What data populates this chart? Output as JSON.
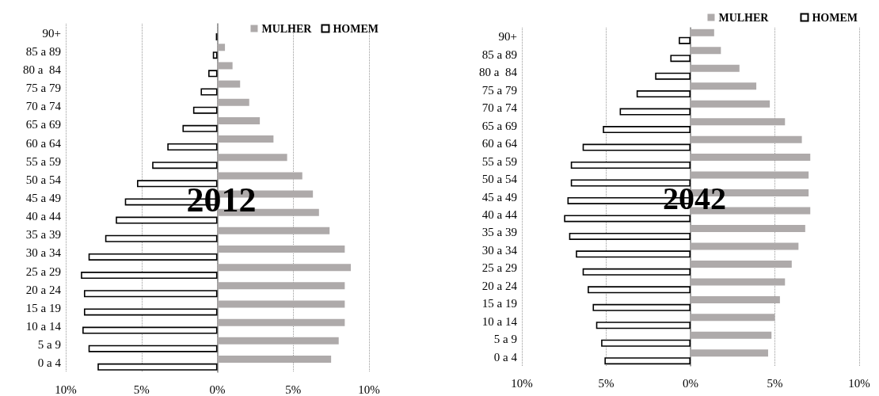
{
  "chart_data": [
    {
      "type": "bar",
      "orientation": "horizontal",
      "title": "2012",
      "categories": [
        "90+",
        "85 a 89",
        "80 a  84",
        "75 a 79",
        "70 a 74",
        "65 a 69",
        "60 a 64",
        "55 a 59",
        "50 a 54",
        "45 a 49",
        "40 a 44",
        "35 a 39",
        "30 a 34",
        "25 a 29",
        "20 a 24",
        "15 a 19",
        "10 a 14",
        "5 a 9",
        "0 a 4"
      ],
      "series": [
        {
          "name": "MULHER",
          "color": "#aeaaaa",
          "values": [
            0,
            0.5,
            1.0,
            1.5,
            2.1,
            2.8,
            3.7,
            4.6,
            5.6,
            6.3,
            6.7,
            7.4,
            8.4,
            8.8,
            8.4,
            8.4,
            8.4,
            8.0,
            7.5
          ]
        },
        {
          "name": "HOMEM",
          "color": "#ffffff",
          "values": [
            -0.1,
            -0.3,
            -0.6,
            -1.1,
            -1.6,
            -2.3,
            -3.3,
            -4.3,
            -5.3,
            -6.1,
            -6.7,
            -7.4,
            -8.5,
            -9.0,
            -8.8,
            -8.8,
            -8.9,
            -8.5,
            -7.9
          ]
        }
      ],
      "xlim": [
        -10,
        10
      ],
      "xticks": [
        {
          "value": -10,
          "label": "10%"
        },
        {
          "value": -5,
          "label": "5%"
        },
        {
          "value": 0,
          "label": "0%"
        },
        {
          "value": 5,
          "label": "5%"
        },
        {
          "value": 10,
          "label": "10%"
        }
      ],
      "grid": "x",
      "legend": "top right"
    },
    {
      "type": "bar",
      "orientation": "horizontal",
      "title": "2042",
      "categories": [
        "90+",
        "85 a 89",
        "80 a  84",
        "75 a 79",
        "70 a 74",
        "65 a 69",
        "60 a 64",
        "55 a 59",
        "50 a 54",
        "45 a 49",
        "40 a 44",
        "35 a 39",
        "30 a 34",
        "25 a 29",
        "20 a 24",
        "15 a 19",
        "10 a 14",
        "5 a 9",
        "0 a 4"
      ],
      "series": [
        {
          "name": "MULHER",
          "color": "#aeaaaa",
          "values": [
            1.4,
            1.8,
            2.9,
            3.9,
            4.7,
            5.6,
            6.6,
            7.1,
            7.0,
            7.0,
            7.1,
            6.8,
            6.4,
            6.0,
            5.6,
            5.3,
            5.0,
            4.8,
            4.6
          ]
        },
        {
          "name": "HOMEM",
          "color": "#ffffff",
          "values": [
            -0.7,
            -1.2,
            -2.1,
            -3.2,
            -4.2,
            -5.2,
            -6.4,
            -7.1,
            -7.1,
            -7.3,
            -7.5,
            -7.2,
            -6.8,
            -6.4,
            -6.1,
            -5.8,
            -5.6,
            -5.3,
            -5.1
          ]
        }
      ],
      "xlim": [
        -10,
        10
      ],
      "xticks": [
        {
          "value": -10,
          "label": "10%"
        },
        {
          "value": -5,
          "label": "5%"
        },
        {
          "value": 0,
          "label": "0%"
        },
        {
          "value": 5,
          "label": "5%"
        },
        {
          "value": 10,
          "label": "10%"
        }
      ],
      "grid": "x",
      "legend": "top right"
    }
  ]
}
